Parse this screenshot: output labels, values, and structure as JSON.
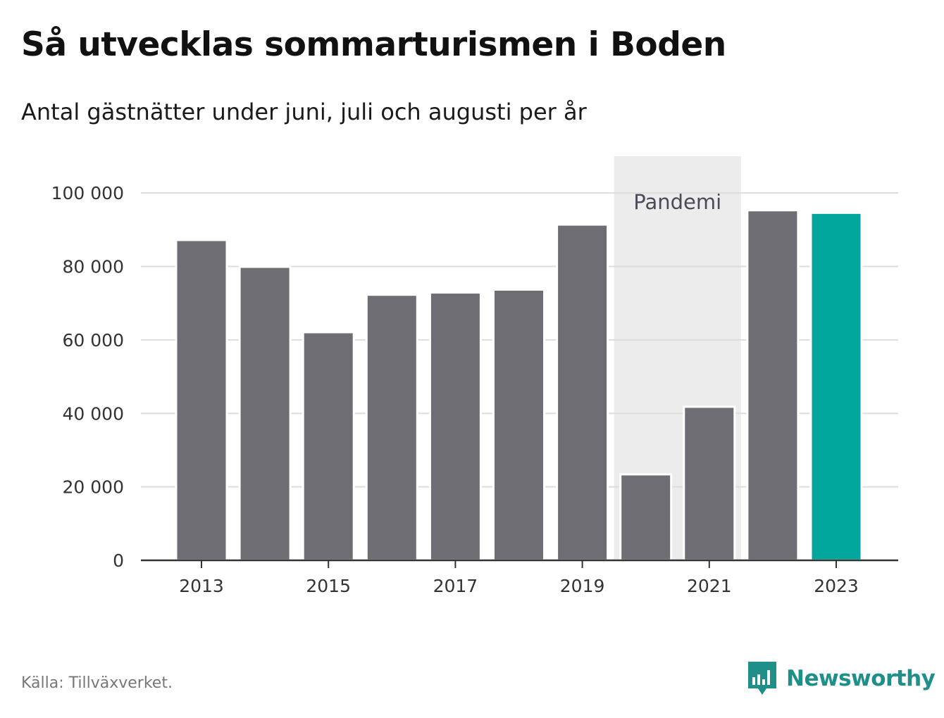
{
  "header": {
    "title": "Så utvecklas sommarturismen i Boden",
    "subtitle": "Antal gästnätter under juni, juli och augusti per år"
  },
  "footer": {
    "source": "Källa: Tillväxverket.",
    "brand": "Newsworthy",
    "brand_icon": "bar-chart-speech-bubble-icon"
  },
  "colors": {
    "bar": "#6e6d74",
    "highlight": "#00a59b",
    "band": "#ececec",
    "grid": "#dddddd",
    "axis": "#333333",
    "brand": "#1f8f8a"
  },
  "chart_data": {
    "type": "bar",
    "categories": [
      "2013",
      "2014",
      "2015",
      "2016",
      "2017",
      "2018",
      "2019",
      "2020",
      "2021",
      "2022",
      "2023"
    ],
    "values": [
      87200,
      79900,
      62100,
      72300,
      72900,
      73700,
      91400,
      23400,
      41800,
      95300,
      94600
    ],
    "highlight_index": 10,
    "x_tick_labels": [
      "2013",
      "2015",
      "2017",
      "2019",
      "2021",
      "2023"
    ],
    "y_ticks": [
      0,
      20000,
      40000,
      60000,
      80000,
      100000
    ],
    "y_tick_labels": [
      "0",
      "20 000",
      "40 000",
      "60 000",
      "80 000",
      "100 000"
    ],
    "ylim": [
      0,
      110000
    ],
    "grid": true,
    "annotation": {
      "label": "Pandemi",
      "from_category": "2020",
      "to_category": "2021"
    },
    "xlabel": "",
    "ylabel": ""
  }
}
